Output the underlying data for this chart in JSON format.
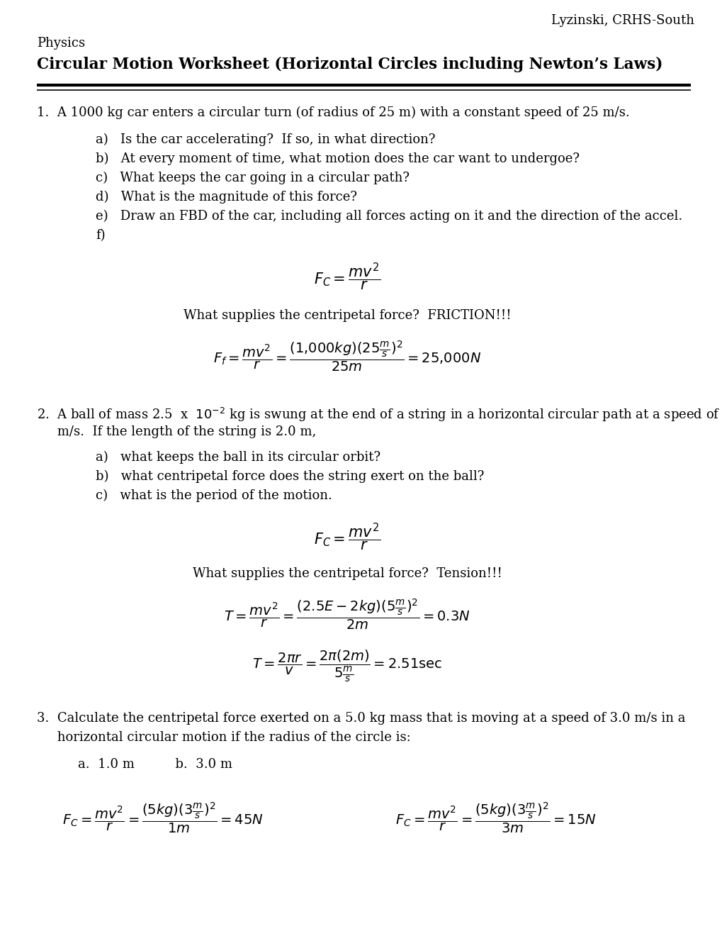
{
  "bg_color": "#ffffff",
  "text_color": "#000000",
  "header_right": "Lyzinski, CRHS-South",
  "subject": "Physics",
  "title": "Circular Motion Worksheet (Horizontal Circles including Newton’s Laws)",
  "q1_text": "1.  A 1000 kg car enters a circular turn (of radius of 25 m) with a constant speed of 25 m/s.",
  "q1_parts": [
    "a)   Is the car accelerating?  If so, in what direction?",
    "b)   At every moment of time, what motion does the car want to undergoe?",
    "c)   What keeps the car going in a circular path?",
    "d)   What is the magnitude of this force?",
    "e)   Draw an FBD of the car, including all forces acting on it and the direction of the accel.",
    "f)"
  ],
  "q2_parts": [
    "a)   what keeps the ball in its circular orbit?",
    "b)   what centripetal force does the string exert on the ball?",
    "c)   what is the period of the motion."
  ],
  "q3_text": "3.  Calculate the centripetal force exerted on a 5.0 kg mass that is moving at a speed of 3.0 m/s in a",
  "q3_line2": "     horizontal circular motion if the radius of the circle is:",
  "q3_sub": "a.  1.0 m          b.  3.0 m",
  "font_size_body": 13,
  "font_size_header": 13,
  "font_size_title": 15.5
}
